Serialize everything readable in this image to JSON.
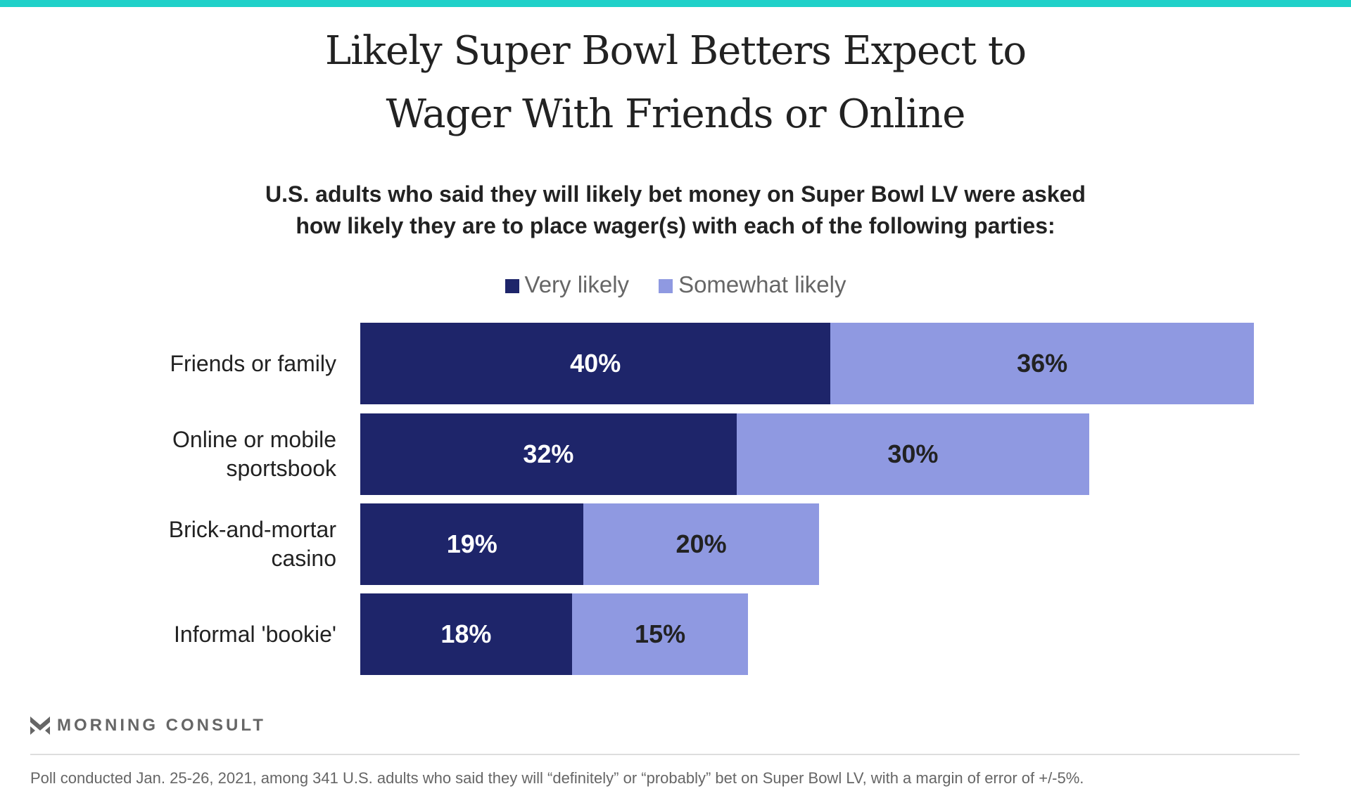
{
  "colors": {
    "accent": "#1fd1c9",
    "very": "#1e256a",
    "somewhat": "#8f99e1"
  },
  "chart_data": {
    "type": "bar",
    "orientation": "horizontal",
    "stacked": true,
    "title": "Likely Super Bowl Betters Expect to Wager With Friends or Online",
    "title_lines": [
      "Likely Super Bowl Betters Expect to",
      "Wager With Friends or Online"
    ],
    "subtitle_lines": [
      "U.S. adults who said they will likely bet money on Super Bowl LV were asked",
      "how likely they are to place wager(s) with each of the following parties:"
    ],
    "legend": [
      "Very likely",
      "Somewhat likely"
    ],
    "legend_position": "top",
    "categories": [
      [
        "Friends or family"
      ],
      [
        "Online or mobile",
        "sportsbook"
      ],
      [
        "Brick-and-mortar",
        "casino"
      ],
      [
        "Informal 'bookie'"
      ]
    ],
    "series": [
      {
        "name": "Very likely",
        "values": [
          40,
          32,
          19,
          18
        ],
        "labels": [
          "40%",
          "32%",
          "19%",
          "18%"
        ]
      },
      {
        "name": "Somewhat likely",
        "values": [
          36,
          30,
          20,
          15
        ],
        "labels": [
          "36%",
          "30%",
          "20%",
          "15%"
        ]
      }
    ],
    "xlim": [
      0,
      100
    ],
    "grid": false
  },
  "brand": "MORNING CONSULT",
  "footnote": "Poll conducted Jan. 25-26, 2021, among 341 U.S. adults who said they will “definitely” or “probably” bet on Super Bowl LV, with a margin of error of +/-5%."
}
